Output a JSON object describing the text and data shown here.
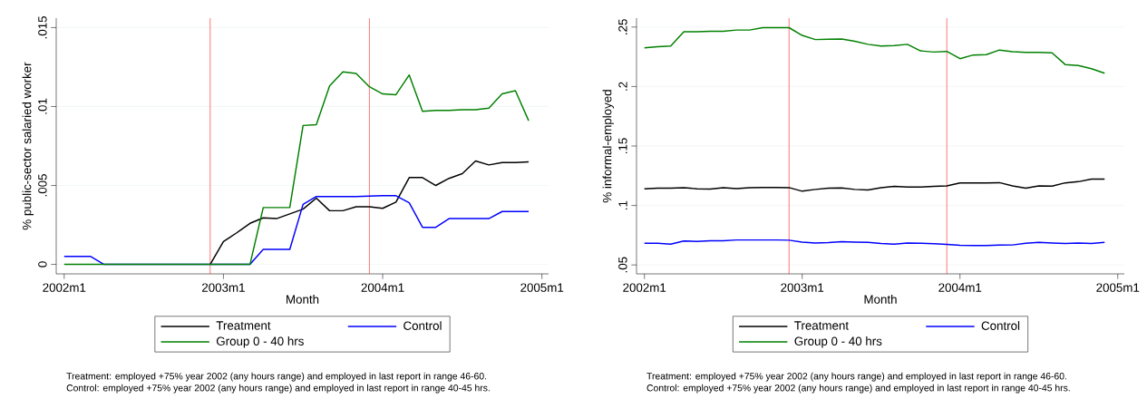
{
  "chart_data": [
    {
      "type": "line",
      "xlabel": "Month",
      "ylabel": "% public-sector salaried worker",
      "x": [
        "2002-01",
        "2002-02",
        "2002-03",
        "2002-04",
        "2002-05",
        "2002-06",
        "2002-07",
        "2002-08",
        "2002-09",
        "2002-10",
        "2002-11",
        "2002-12",
        "2003-01",
        "2003-02",
        "2003-03",
        "2003-04",
        "2003-05",
        "2003-06",
        "2003-07",
        "2003-08",
        "2003-09",
        "2003-10",
        "2003-11",
        "2003-12",
        "2004-01",
        "2004-02",
        "2004-03",
        "2004-04",
        "2004-05",
        "2004-06",
        "2004-07",
        "2004-08",
        "2004-09",
        "2004-10",
        "2004-11",
        "2004-12"
      ],
      "series": [
        {
          "name": "Treatment",
          "color": "#000000",
          "values": [
            null,
            null,
            null,
            null,
            null,
            null,
            null,
            null,
            null,
            null,
            null,
            0,
            0.00145,
            0.002,
            0.0026,
            0.00295,
            0.0029,
            0.0032,
            0.0035,
            0.0042,
            0.0034,
            0.0034,
            0.00365,
            0.00365,
            0.00355,
            0.00395,
            0.0055,
            0.0055,
            0.005,
            0.00545,
            0.00575,
            0.00655,
            0.0063,
            0.00645,
            0.00645,
            0.0065
          ]
        },
        {
          "name": "Control",
          "color": "#0000ff",
          "values": [
            0.0005,
            0.0005,
            0.0005,
            0,
            0,
            0,
            0,
            0,
            0,
            0,
            0,
            0,
            0,
            0,
            0,
            0.00095,
            0.00095,
            0.00095,
            0.0038,
            0.0043,
            0.0043,
            0.0043,
            0.0043,
            0.00433,
            0.00435,
            0.00435,
            0.0039,
            0.00235,
            0.00235,
            0.0029,
            0.0029,
            0.0029,
            0.0029,
            0.00335,
            0.00335,
            0.00335
          ]
        },
        {
          "name": "Group 0 - 40 hrs",
          "color": "#008000",
          "values": [
            0,
            0,
            0,
            0,
            0,
            0,
            0,
            0,
            0,
            0,
            0,
            0,
            0,
            0,
            0,
            0.0036,
            0.0036,
            0.0036,
            0.0088,
            0.00885,
            0.0113,
            0.0122,
            0.0121,
            0.01125,
            0.0108,
            0.01075,
            0.012,
            0.0097,
            0.00975,
            0.00975,
            0.0098,
            0.0098,
            0.0099,
            0.0108,
            0.011,
            0.0091
          ]
        }
      ],
      "xlim": [
        "2001-12-13",
        "2005-01-16"
      ],
      "xticks": [
        {
          "value": "2002-01",
          "label": "2002m1"
        },
        {
          "value": "2003-01",
          "label": "2003m1"
        },
        {
          "value": "2004-01",
          "label": "2004m1"
        },
        {
          "value": "2005-01",
          "label": "2005m1"
        }
      ],
      "ylim": [
        -0.0006,
        0.0156
      ],
      "yticks": [
        0,
        {
          "value": 0.005,
          "label": ".005"
        },
        {
          "value": 0.01,
          "label": ".01"
        },
        {
          "value": 0.015,
          "label": ".015"
        }
      ],
      "ref_lines": [
        {
          "axis": "x",
          "value": "2002-12",
          "color": "#ff0000"
        },
        {
          "axis": "x",
          "value": "2003-12",
          "color": "#ff0000"
        }
      ],
      "grid": "y",
      "legend": "bottom",
      "marker": "none",
      "line_style": "solid",
      "annotations": [
        "Treatment: employed +75% year 2002 (any hours range) and employed in last report in range 46-60.",
        "Control: employed +75% year 2002 (any hours range) and employed in last report in range 40-45 hrs."
      ]
    },
    {
      "type": "line",
      "xlabel": "Month",
      "ylabel": "% informal-employed",
      "x": [
        "2002-01",
        "2002-02",
        "2002-03",
        "2002-04",
        "2002-05",
        "2002-06",
        "2002-07",
        "2002-08",
        "2002-09",
        "2002-10",
        "2002-11",
        "2002-12",
        "2003-01",
        "2003-02",
        "2003-03",
        "2003-04",
        "2003-05",
        "2003-06",
        "2003-07",
        "2003-08",
        "2003-09",
        "2003-10",
        "2003-11",
        "2003-12",
        "2004-01",
        "2004-02",
        "2004-03",
        "2004-04",
        "2004-05",
        "2004-06",
        "2004-07",
        "2004-08",
        "2004-09",
        "2004-10",
        "2004-11",
        "2004-12"
      ],
      "series": [
        {
          "name": "Treatment",
          "color": "#000000",
          "values": [
            0.114,
            0.1145,
            0.1145,
            0.115,
            0.114,
            0.1138,
            0.115,
            0.1142,
            0.115,
            0.1152,
            0.1152,
            0.115,
            0.112,
            0.1135,
            0.1145,
            0.1147,
            0.1135,
            0.113,
            0.115,
            0.116,
            0.1155,
            0.1155,
            0.116,
            0.1165,
            0.119,
            0.119,
            0.119,
            0.1192,
            0.1165,
            0.1145,
            0.1165,
            0.1162,
            0.119,
            0.12,
            0.1222,
            0.1222
          ]
        },
        {
          "name": "Control",
          "color": "#0000ff",
          "values": [
            0.0683,
            0.0683,
            0.0675,
            0.0702,
            0.0698,
            0.0703,
            0.0703,
            0.071,
            0.071,
            0.071,
            0.071,
            0.0708,
            0.0692,
            0.0685,
            0.0688,
            0.0695,
            0.0692,
            0.069,
            0.068,
            0.0675,
            0.0685,
            0.0683,
            0.0678,
            0.0672,
            0.0665,
            0.0663,
            0.0663,
            0.0667,
            0.0668,
            0.0683,
            0.069,
            0.0685,
            0.068,
            0.0685,
            0.068,
            0.069
          ]
        },
        {
          "name": "Group 0 - 40 hrs",
          "color": "#008000",
          "values": [
            0.2326,
            0.2335,
            0.234,
            0.246,
            0.246,
            0.2465,
            0.2465,
            0.2475,
            0.2475,
            0.2495,
            0.2495,
            0.2495,
            0.243,
            0.2395,
            0.2398,
            0.24,
            0.238,
            0.2355,
            0.234,
            0.2345,
            0.2355,
            0.23,
            0.229,
            0.2295,
            0.2234,
            0.2265,
            0.2268,
            0.2307,
            0.2293,
            0.2288,
            0.2287,
            0.2283,
            0.2185,
            0.2177,
            0.215,
            0.2112
          ]
        }
      ],
      "xlim": [
        "2001-12-13",
        "2005-01-16"
      ],
      "xticks": [
        {
          "value": "2002-01",
          "label": "2002m1"
        },
        {
          "value": "2003-01",
          "label": "2003m1"
        },
        {
          "value": "2004-01",
          "label": "2004m1"
        },
        {
          "value": "2005-01",
          "label": "2005m1"
        }
      ],
      "ylim": [
        0.0425,
        0.2575
      ],
      "yticks": [
        {
          "value": 0.05,
          "label": ".05"
        },
        {
          "value": 0.1,
          "label": ".1"
        },
        {
          "value": 0.15,
          "label": ".15"
        },
        {
          "value": 0.2,
          "label": ".2"
        },
        {
          "value": 0.25,
          "label": ".25"
        }
      ],
      "ref_lines": [
        {
          "axis": "x",
          "value": "2002-12",
          "color": "#ff0000"
        },
        {
          "axis": "x",
          "value": "2003-12",
          "color": "#ff0000"
        }
      ],
      "grid": "y",
      "legend": "bottom",
      "marker": "none",
      "line_style": "solid",
      "annotations": [
        "Treatment: employed +75% year 2002 (any hours range) and employed in last report in range 46-60.",
        "Control: employed +75% year 2002 (any hours range) and employed in last report in range 40-45 hrs."
      ]
    }
  ]
}
